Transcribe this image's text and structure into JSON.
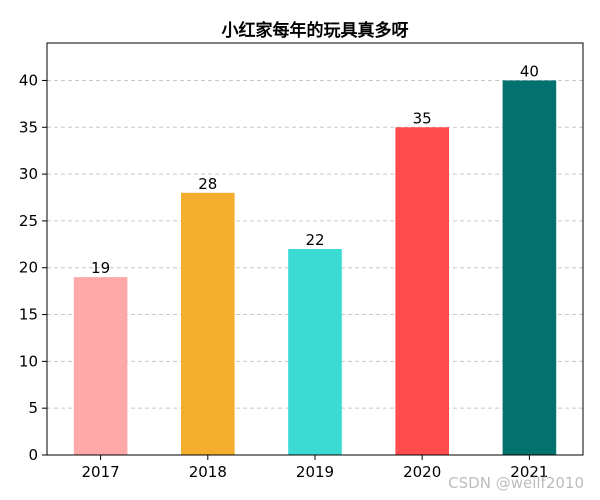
{
  "chart_data": {
    "type": "bar",
    "title": "小红家每年的玩具真多呀",
    "categories": [
      "2017",
      "2018",
      "2019",
      "2020",
      "2021"
    ],
    "values": [
      19,
      28,
      22,
      35,
      40
    ],
    "colors": [
      "#ffa8a8",
      "#f3ae2d",
      "#3bdbd4",
      "#ff4b4b",
      "#03716e"
    ],
    "xlabel": "",
    "ylabel": "",
    "ylim": [
      0,
      44
    ],
    "yticks": [
      0,
      5,
      10,
      15,
      20,
      25,
      30,
      35,
      40
    ],
    "grid": "y-dashed",
    "data_labels": true
  },
  "watermark": "CSDN @weilf2010"
}
